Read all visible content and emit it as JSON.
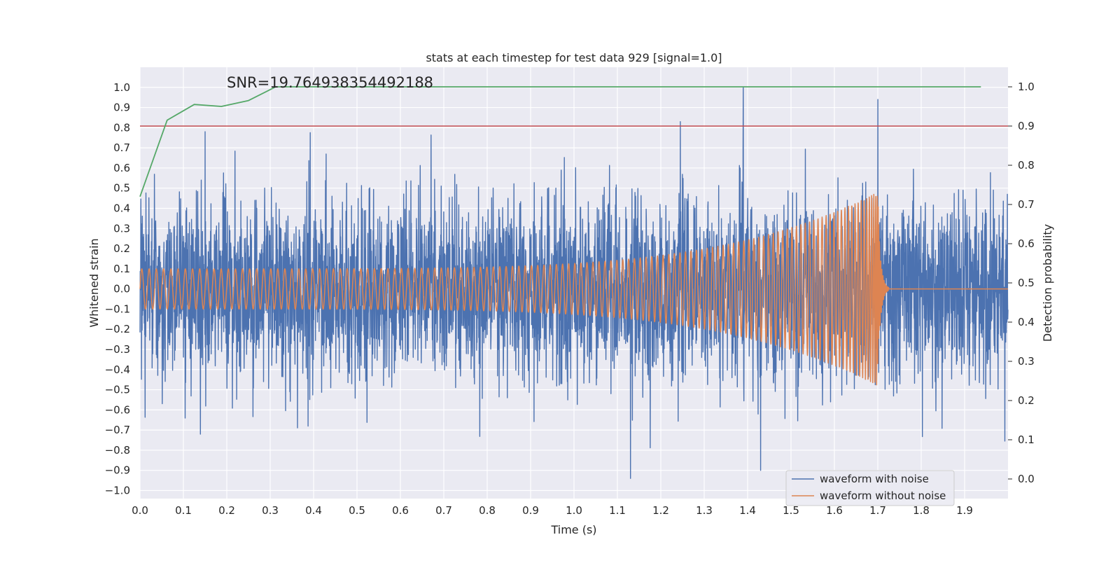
{
  "chart_data": {
    "type": "line",
    "title": "stats at each timestep for test data 929 [signal=1.0]",
    "annotation": "SNR=19.764938354492188",
    "annotation_pos": {
      "x": 0.2,
      "y": 1.0
    },
    "xlabel": "Time (s)",
    "ylabel": "Whitened strain",
    "ylabel_right": "Detection probability",
    "xlim": [
      0.0,
      2.0
    ],
    "ylim": [
      -1.04,
      1.1
    ],
    "ylim_right": [
      -0.05,
      1.05
    ],
    "xticks": [
      "0.0",
      "0.1",
      "0.2",
      "0.3",
      "0.4",
      "0.5",
      "0.6",
      "0.7",
      "0.8",
      "0.9",
      "1.0",
      "1.1",
      "1.2",
      "1.3",
      "1.4",
      "1.5",
      "1.6",
      "1.7",
      "1.8",
      "1.9"
    ],
    "yticks": [
      "1.0",
      "0.9",
      "0.8",
      "0.7",
      "0.6",
      "0.5",
      "0.4",
      "0.3",
      "0.2",
      "0.1",
      "0.0",
      "−0.1",
      "−0.2",
      "−0.3",
      "−0.4",
      "−0.5",
      "−0.6",
      "−0.7",
      "−0.8",
      "−0.9",
      "−1.0"
    ],
    "yticks_right": [
      "1.0",
      "0.9",
      "0.8",
      "0.7",
      "0.6",
      "0.5",
      "0.4",
      "0.3",
      "0.2",
      "0.1",
      "0.0"
    ],
    "grid": true,
    "legend": {
      "location": "lower-right",
      "entries": [
        "waveform with noise",
        "waveform without noise"
      ]
    },
    "colors": {
      "noise": "#4c72b0",
      "signal": "#dd8452",
      "probability": "#55a868",
      "threshold": "#c44e52",
      "background": "#eaeaf2",
      "grid": "#ffffff"
    },
    "threshold": 0.9,
    "series": [
      {
        "name": "waveform with noise",
        "x_range": [
          0.0,
          2.0
        ],
        "samples": 4096,
        "amplitude_std": 0.22,
        "peaks": [
          {
            "x": 1.39,
            "y": 1.0
          },
          {
            "x": 1.7,
            "y": 0.94
          },
          {
            "x": 1.245,
            "y": 0.83
          },
          {
            "x": 0.15,
            "y": 0.78
          },
          {
            "x": 1.13,
            "y": -0.94
          },
          {
            "x": 1.43,
            "y": -0.9
          }
        ]
      },
      {
        "name": "waveform without noise",
        "x_range": [
          0.0,
          1.72
        ],
        "samples": 4096,
        "start_amplitude": 0.1,
        "peak_amplitude": 0.48,
        "peak_x": 1.7,
        "end_x": 1.725,
        "tail_value": 0.0,
        "tail_end_x": 2.0
      },
      {
        "name": "",
        "axis": "right",
        "x": [
          0.0,
          0.0625,
          0.125,
          0.1875,
          0.25,
          0.3125,
          0.375,
          0.4375,
          0.5,
          0.5625,
          0.625,
          0.6875,
          0.75,
          0.8125,
          0.875,
          0.9375,
          1.0,
          1.0625,
          1.125,
          1.1875,
          1.25,
          1.3125,
          1.375,
          1.4375,
          1.5,
          1.5625,
          1.625,
          1.6875,
          1.75,
          1.8125,
          1.875,
          1.9375
        ],
        "y": [
          0.72,
          0.915,
          0.955,
          0.95,
          0.965,
          1.0,
          1.0,
          1.0,
          1.0,
          1.0,
          1.0,
          1.0,
          1.0,
          1.0,
          1.0,
          1.0,
          1.0,
          1.0,
          1.0,
          1.0,
          1.0,
          1.0,
          1.0,
          1.0,
          1.0,
          1.0,
          1.0,
          1.0,
          1.0,
          1.0,
          1.0,
          1.0
        ]
      }
    ]
  }
}
